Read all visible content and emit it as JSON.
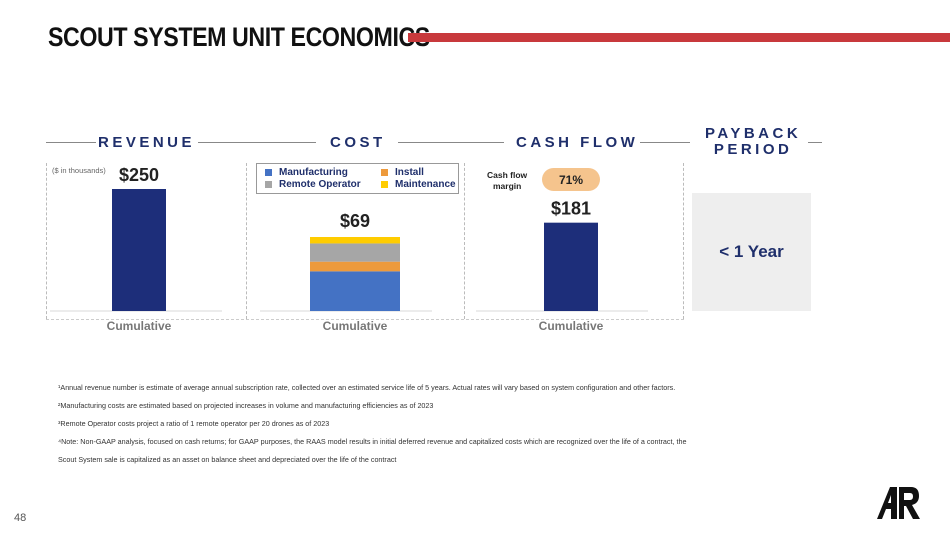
{
  "title": "SCOUT SYSTEM UNIT ECONOMICS",
  "colors": {
    "accent_bar": "#c8393c",
    "navy": "#1d2e7a",
    "manufacturing": "#4472c4",
    "install": "#ed9a3c",
    "remote_operator": "#a6a6a6",
    "maintenance": "#ffcc00",
    "badge": "#f5c48d",
    "payback_bg": "#eeeeee"
  },
  "sections": {
    "revenue": "REVENUE",
    "cost": "COST",
    "cash_flow": "CASH FLOW",
    "payback_line1": "PAYBACK",
    "payback_line2": "PERIOD"
  },
  "units_note": "($ in thousands)",
  "cash_flow_margin_label_1": "Cash flow",
  "cash_flow_margin_label_2": "margin",
  "cash_flow_margin_value": "71%",
  "payback_value": "< 1 Year",
  "chart_data": [
    {
      "type": "bar",
      "categories": [
        "Cumulative"
      ],
      "values": [
        250
      ],
      "data_labels": [
        "$250"
      ],
      "note": "($ in thousands)"
    },
    {
      "type": "bar",
      "stacked": true,
      "categories": [
        "Cumulative"
      ],
      "total_label": "$69",
      "series": [
        {
          "name": "Manufacturing",
          "values": [
            37
          ]
        },
        {
          "name": "Install",
          "values": [
            9
          ]
        },
        {
          "name": "Remote Operator",
          "values": [
            17
          ]
        },
        {
          "name": "Maintenance",
          "values": [
            6
          ]
        }
      ],
      "legend": [
        "Manufacturing",
        "Install",
        "Remote Operator",
        "Maintenance"
      ]
    },
    {
      "type": "bar",
      "categories": [
        "Cumulative"
      ],
      "values": [
        181
      ],
      "data_labels": [
        "$181"
      ],
      "annotation": "71%"
    }
  ],
  "legend": {
    "manufacturing": "Manufacturing",
    "install": "Install",
    "remote_operator": "Remote Operator",
    "maintenance": "Maintenance"
  },
  "footnotes": [
    "¹Annual revenue number is estimate of average annual subscription rate, collected over an estimated service life of 5 years. Actual rates will vary based on system configuration and other factors.",
    "²Manufacturing costs are estimated based on projected increases in volume and manufacturing efficiencies as of 2023",
    "³Remote Operator costs project a ratio of 1 remote operator per 20 drones as of 2023",
    "⁴Note: Non-GAAP analysis, focused on cash returns; for GAAP purposes, the RAAS model results in initial deferred revenue and capitalized costs which are recognized over the life of a contract, the",
    "Scout System sale is capitalized as an asset on balance sheet and depreciated over the life of the contract"
  ],
  "page_number": "48"
}
